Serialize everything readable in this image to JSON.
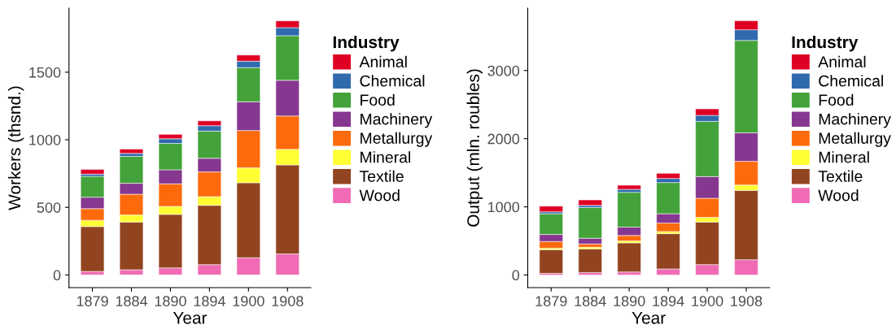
{
  "chart_data": [
    {
      "type": "bar",
      "stacked": true,
      "xlabel": "Year",
      "ylabel": "Workers (thsnd.)",
      "legend_title": "Industry",
      "legend": "right",
      "grid": false,
      "categories": [
        "1879",
        "1884",
        "1890",
        "1894",
        "1900",
        "1908"
      ],
      "ylim": [
        -94,
        1974
      ],
      "yticks": [
        0,
        500,
        1000,
        1500
      ],
      "series": [
        {
          "name": "Wood",
          "color": "#f06bb4",
          "values": [
            26,
            38,
            52,
            76,
            127,
            155
          ]
        },
        {
          "name": "Textile",
          "color": "#924420",
          "values": [
            332,
            354,
            396,
            439,
            555,
            659
          ]
        },
        {
          "name": "Mineral",
          "color": "#ffff33",
          "values": [
            46,
            52,
            59,
            64,
            110,
            115
          ]
        },
        {
          "name": "Metallurgy",
          "color": "#fd6a0c",
          "values": [
            86,
            153,
            167,
            183,
            276,
            247
          ]
        },
        {
          "name": "Machinery",
          "color": "#86378f",
          "values": [
            85,
            81,
            104,
            101,
            213,
            264
          ]
        },
        {
          "name": "Food",
          "color": "#43a33a",
          "values": [
            155,
            199,
            195,
            201,
            253,
            330
          ]
        },
        {
          "name": "Chemical",
          "color": "#2f6aad",
          "values": [
            16,
            22,
            34,
            40,
            47,
            60
          ]
        },
        {
          "name": "Animal",
          "color": "#df0024",
          "values": [
            34,
            32,
            33,
            36,
            46,
            50
          ]
        }
      ]
    },
    {
      "type": "bar",
      "stacked": true,
      "xlabel": "Year",
      "ylabel": "Output (mln. roubles)",
      "legend_title": "Industry",
      "legend": "right",
      "grid": false,
      "categories": [
        "1879",
        "1884",
        "1890",
        "1894",
        "1900",
        "1908"
      ],
      "ylim": [
        -186,
        3916
      ],
      "yticks": [
        0,
        1000,
        2000,
        3000
      ],
      "series": [
        {
          "name": "Wood",
          "color": "#f06bb4",
          "values": [
            24,
            36,
            44,
            88,
            152,
            223
          ]
        },
        {
          "name": "Textile",
          "color": "#924420",
          "values": [
            347,
            347,
            427,
            518,
            626,
            1018
          ]
        },
        {
          "name": "Mineral",
          "color": "#ffff33",
          "values": [
            20,
            24,
            28,
            32,
            68,
            79
          ]
        },
        {
          "name": "Metallurgy",
          "color": "#fd6a0c",
          "values": [
            100,
            48,
            80,
            124,
            279,
            347
          ]
        },
        {
          "name": "Machinery",
          "color": "#86378f",
          "values": [
            103,
            84,
            123,
            136,
            319,
            419
          ]
        },
        {
          "name": "Food",
          "color": "#43a33a",
          "values": [
            304,
            451,
            511,
            458,
            810,
            1356
          ]
        },
        {
          "name": "Chemical",
          "color": "#2f6aad",
          "values": [
            28,
            31,
            44,
            60,
            88,
            156
          ]
        },
        {
          "name": "Animal",
          "color": "#df0024",
          "values": [
            84,
            80,
            60,
            76,
            95,
            132
          ]
        }
      ]
    }
  ]
}
